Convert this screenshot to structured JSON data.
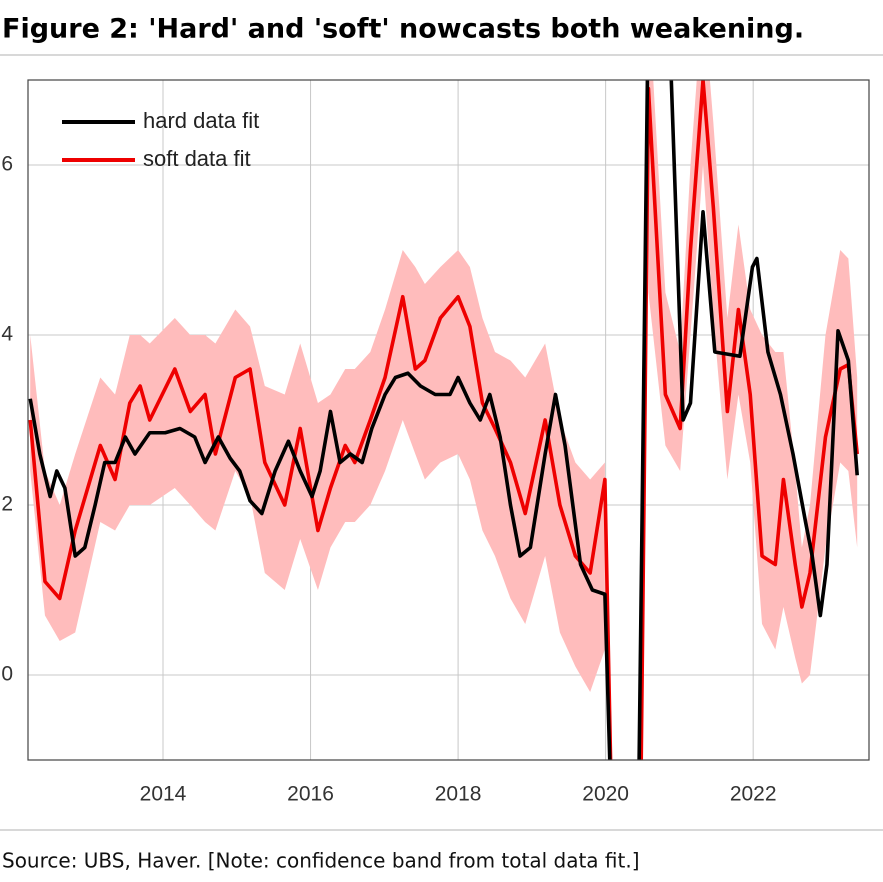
{
  "chart_data": {
    "type": "line",
    "title": "Figure 2: 'Hard' and 'soft' nowcasts both weakening.",
    "source": "Source: UBS, Haver. [Note: confidence band from total data fit.]",
    "xlim": [
      2012.17,
      2023.57
    ],
    "xticks": [
      2014,
      2016,
      2018,
      2020,
      2022
    ],
    "ylim": [
      -1,
      7
    ],
    "yticks": [
      0,
      2,
      4,
      6
    ],
    "grid": true,
    "legend": "upper left",
    "series": [
      {
        "name": "hard data fit",
        "color": "#000000",
        "x": [
          2012.2,
          2012.33,
          2012.47,
          2012.56,
          2012.67,
          2012.81,
          2012.94,
          2013.08,
          2013.21,
          2013.35,
          2013.49,
          2013.62,
          2013.82,
          2014.03,
          2014.23,
          2014.43,
          2014.57,
          2014.75,
          2014.91,
          2015.04,
          2015.18,
          2015.34,
          2015.52,
          2015.7,
          2015.86,
          2016.02,
          2016.13,
          2016.27,
          2016.4,
          2016.54,
          2016.7,
          2016.83,
          2017.01,
          2017.15,
          2017.32,
          2017.49,
          2017.69,
          2017.89,
          2018.0,
          2018.16,
          2018.3,
          2018.43,
          2018.57,
          2018.71,
          2018.84,
          2018.98,
          2019.18,
          2019.32,
          2019.45,
          2019.66,
          2019.82,
          2019.99,
          2020.09,
          2020.44,
          2020.58,
          2020.85,
          2021.05,
          2021.15,
          2021.32,
          2021.48,
          2021.82,
          2021.99,
          2022.05,
          2022.2,
          2022.37,
          2022.54,
          2022.71,
          2022.8,
          2022.91,
          2023.0,
          2023.15,
          2023.29,
          2023.41
        ],
        "values": [
          3.25,
          2.6,
          2.1,
          2.4,
          2.2,
          1.4,
          1.5,
          2.0,
          2.5,
          2.5,
          2.8,
          2.6,
          2.85,
          2.85,
          2.9,
          2.8,
          2.5,
          2.8,
          2.55,
          2.4,
          2.05,
          1.9,
          2.4,
          2.75,
          2.4,
          2.1,
          2.4,
          3.1,
          2.5,
          2.6,
          2.5,
          2.9,
          3.3,
          3.5,
          3.55,
          3.4,
          3.3,
          3.3,
          3.5,
          3.2,
          3.0,
          3.3,
          2.8,
          2.0,
          1.4,
          1.5,
          2.6,
          3.3,
          2.7,
          1.3,
          1.0,
          0.95,
          -2,
          -2,
          8,
          8,
          3.0,
          3.2,
          5.45,
          3.8,
          3.75,
          4.8,
          4.9,
          3.8,
          3.3,
          2.6,
          1.8,
          1.4,
          0.7,
          1.3,
          4.05,
          3.7,
          2.35
        ]
      },
      {
        "name": "soft data fit",
        "color": "#ee0000",
        "x": [
          2012.2,
          2012.4,
          2012.6,
          2012.81,
          2013.15,
          2013.35,
          2013.55,
          2013.69,
          2013.82,
          2014.16,
          2014.37,
          2014.57,
          2014.71,
          2014.98,
          2015.18,
          2015.38,
          2015.65,
          2015.86,
          2016.1,
          2016.27,
          2016.47,
          2016.6,
          2016.81,
          2017.01,
          2017.25,
          2017.42,
          2017.55,
          2017.76,
          2018.0,
          2018.16,
          2018.33,
          2018.5,
          2018.71,
          2018.91,
          2019.18,
          2019.38,
          2019.59,
          2019.79,
          2019.99,
          2020.09,
          2020.47,
          2020.58,
          2020.81,
          2021.01,
          2021.15,
          2021.32,
          2021.46,
          2021.65,
          2021.8,
          2021.96,
          2022.12,
          2022.3,
          2022.41,
          2022.57,
          2022.66,
          2022.77,
          2022.98,
          2023.18,
          2023.29,
          2023.41
        ],
        "values": [
          3.0,
          1.1,
          0.9,
          1.7,
          2.7,
          2.3,
          3.2,
          3.4,
          3.0,
          3.6,
          3.1,
          3.3,
          2.6,
          3.5,
          3.6,
          2.5,
          2.0,
          2.9,
          1.7,
          2.2,
          2.7,
          2.5,
          3.0,
          3.5,
          4.45,
          3.6,
          3.7,
          4.2,
          4.45,
          4.1,
          3.2,
          2.9,
          2.5,
          1.9,
          3.0,
          2.0,
          1.4,
          1.2,
          2.3,
          -2,
          -2,
          6.9,
          3.3,
          2.9,
          5.0,
          7.0,
          5.5,
          3.1,
          4.3,
          3.3,
          1.4,
          1.3,
          2.3,
          1.3,
          0.8,
          1.2,
          2.8,
          3.6,
          3.65,
          2.6
        ],
        "band_color": "#ffbcbc",
        "lower": [
          2.4,
          0.7,
          0.4,
          0.5,
          1.8,
          1.7,
          2.0,
          2.0,
          2.0,
          2.2,
          2.0,
          1.8,
          1.7,
          2.4,
          2.1,
          1.2,
          1.0,
          1.6,
          1.0,
          1.5,
          1.8,
          1.8,
          2.0,
          2.4,
          3.0,
          2.6,
          2.3,
          2.5,
          2.6,
          2.3,
          1.7,
          1.4,
          0.9,
          0.6,
          1.4,
          0.5,
          0.1,
          -0.2,
          0.3,
          null,
          null,
          4.5,
          2.7,
          2.4,
          4.0,
          6.0,
          4.2,
          2.3,
          3.3,
          2.5,
          0.6,
          0.3,
          0.8,
          0.2,
          -0.1,
          0.0,
          1.5,
          2.5,
          2.4,
          1.5
        ],
        "upper": [
          4.0,
          2.4,
          2.0,
          2.6,
          3.5,
          3.3,
          4.0,
          4.0,
          3.9,
          4.2,
          4.0,
          4.0,
          3.9,
          4.3,
          4.1,
          3.4,
          3.3,
          3.9,
          3.2,
          3.3,
          3.6,
          3.6,
          3.8,
          4.3,
          5.0,
          4.8,
          4.6,
          4.8,
          5.0,
          4.8,
          4.2,
          3.8,
          3.7,
          3.5,
          3.9,
          3.0,
          2.5,
          2.3,
          2.5,
          null,
          null,
          8,
          4.5,
          3.8,
          6.0,
          8,
          6.5,
          4.2,
          5.3,
          4.3,
          4.0,
          3.8,
          3.8,
          2.4,
          1.5,
          2.0,
          4.0,
          5.0,
          4.9,
          3.5
        ]
      }
    ]
  }
}
